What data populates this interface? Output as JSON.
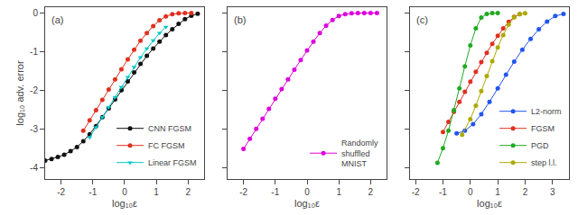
{
  "chart_data": [
    {
      "type": "line",
      "x_label": "log₁₀ε",
      "y_label": "log₁₀ adv. error",
      "annotations": [
        "(a)"
      ],
      "xlim": [
        -2.5,
        2.5
      ],
      "ylim": [
        -4.3,
        0.15
      ],
      "xticks": [
        -2,
        -1,
        0,
        1,
        2
      ],
      "yticks": [
        -4,
        -3,
        -2,
        -1,
        0
      ],
      "grid": false,
      "legend": "lower right",
      "series": [
        {
          "name": "CNN FGSM",
          "color": "#111111",
          "marker": "circle",
          "x": [
            -2.5,
            -2.3,
            -2.1,
            -1.9,
            -1.7,
            -1.5,
            -1.3,
            -1.1,
            -0.9,
            -0.7,
            -0.5,
            -0.3,
            -0.1,
            0.1,
            0.3,
            0.5,
            0.7,
            0.9,
            1.1,
            1.3,
            1.5,
            1.7,
            1.9,
            2.1,
            2.3
          ],
          "values": [
            -3.82,
            -3.78,
            -3.73,
            -3.67,
            -3.58,
            -3.47,
            -3.32,
            -3.14,
            -2.93,
            -2.7,
            -2.47,
            -2.24,
            -2.0,
            -1.77,
            -1.54,
            -1.32,
            -1.11,
            -0.92,
            -0.74,
            -0.57,
            -0.42,
            -0.28,
            -0.16,
            -0.07,
            -0.02
          ]
        },
        {
          "name": "FC FGSM",
          "color": "#e03020",
          "marker": "circle",
          "x": [
            -1.3,
            -1.1,
            -0.9,
            -0.7,
            -0.5,
            -0.3,
            -0.1,
            0.1,
            0.3,
            0.5,
            0.7,
            0.9,
            1.1,
            1.3,
            1.5,
            1.7,
            1.9,
            2.1
          ],
          "values": [
            -3.05,
            -2.78,
            -2.52,
            -2.25,
            -1.98,
            -1.72,
            -1.46,
            -1.2,
            -0.95,
            -0.72,
            -0.52,
            -0.34,
            -0.19,
            -0.09,
            -0.03,
            -0.008,
            -0.002,
            -0.0005
          ]
        },
        {
          "name": "Linear FGSM",
          "color": "#00c8c8",
          "marker": "triangle-down",
          "x": [
            -1.1,
            -0.9,
            -0.7,
            -0.5,
            -0.3,
            -0.1,
            0.1,
            0.3,
            0.5,
            0.7,
            0.9,
            1.1,
            1.3
          ],
          "values": [
            -3.22,
            -2.96,
            -2.7,
            -2.44,
            -2.18,
            -1.92,
            -1.66,
            -1.4,
            -1.15,
            -0.92,
            -0.71,
            -0.52,
            -0.36
          ]
        }
      ]
    },
    {
      "type": "line",
      "x_label": "log₁₀ε",
      "annotations": [
        "(b)"
      ],
      "xlim": [
        -2.5,
        2.5
      ],
      "ylim": [
        -4.3,
        0.15
      ],
      "xticks": [
        -2,
        -1,
        0,
        1,
        2
      ],
      "yticks": [
        -4,
        -3,
        -2,
        -1,
        0
      ],
      "tick_labels": "x",
      "grid": false,
      "legend": "lower right",
      "series": [
        {
          "name": "Randomly\nshuffled\nMNIST",
          "color": "#dd00dd",
          "marker": "circle",
          "x": [
            -2.0,
            -1.8,
            -1.6,
            -1.4,
            -1.2,
            -1.0,
            -0.8,
            -0.6,
            -0.4,
            -0.2,
            0.0,
            0.2,
            0.4,
            0.6,
            0.8,
            1.0,
            1.2,
            1.4,
            1.6,
            1.8,
            2.0,
            2.2
          ],
          "values": [
            -3.52,
            -3.26,
            -3.0,
            -2.74,
            -2.48,
            -2.22,
            -1.97,
            -1.72,
            -1.47,
            -1.22,
            -0.97,
            -0.74,
            -0.52,
            -0.33,
            -0.18,
            -0.08,
            -0.028,
            -0.008,
            -0.002,
            -0.0005,
            -0.0001,
            -3e-05
          ]
        }
      ]
    },
    {
      "type": "line",
      "x_label": "log₁₀ε",
      "annotations": [
        "(c)"
      ],
      "xlim": [
        -2.2,
        3.6
      ],
      "ylim": [
        -4.3,
        0.15
      ],
      "xticks": [
        -2,
        -1,
        0,
        1,
        2,
        3
      ],
      "yticks": [
        -4,
        -3,
        -2,
        -1,
        0
      ],
      "tick_labels": "x",
      "grid": false,
      "legend": "lower right",
      "series": [
        {
          "name": "L2-norm",
          "color": "#2255ee",
          "marker": "circle",
          "x": [
            -0.5,
            -0.2,
            0.1,
            0.4,
            0.7,
            1.0,
            1.3,
            1.6,
            1.9,
            2.2,
            2.5,
            2.8,
            3.1,
            3.4
          ],
          "values": [
            -3.12,
            -3.05,
            -2.88,
            -2.62,
            -2.3,
            -1.95,
            -1.6,
            -1.26,
            -0.95,
            -0.67,
            -0.42,
            -0.22,
            -0.08,
            -0.022
          ]
        },
        {
          "name": "FGSM",
          "color": "#e03020",
          "marker": "circle",
          "x": [
            -1.0,
            -0.8,
            -0.6,
            -0.4,
            -0.2,
            0.0,
            0.2,
            0.4,
            0.6,
            0.8,
            1.0,
            1.2,
            1.4,
            1.6,
            1.8
          ],
          "values": [
            -3.08,
            -2.82,
            -2.56,
            -2.3,
            -2.04,
            -1.78,
            -1.52,
            -1.27,
            -1.03,
            -0.8,
            -0.59,
            -0.4,
            -0.23,
            -0.1,
            -0.032
          ]
        },
        {
          "name": "PGD",
          "color": "#22aa22",
          "marker": "circle",
          "x": [
            -1.2,
            -1.0,
            -0.8,
            -0.6,
            -0.4,
            -0.2,
            0.0,
            0.2,
            0.4,
            0.6,
            0.8,
            1.0
          ],
          "values": [
            -3.88,
            -3.5,
            -3.05,
            -2.52,
            -1.95,
            -1.38,
            -0.84,
            -0.4,
            -0.12,
            -0.025,
            -0.004,
            -0.0005
          ]
        },
        {
          "name": "step l.l.",
          "color": "#aaaa00",
          "marker": "circle",
          "x": [
            -0.3,
            0.0,
            0.2,
            0.4,
            0.6,
            0.8,
            1.0,
            1.2,
            1.4,
            1.6,
            1.8,
            2.0
          ],
          "values": [
            -3.15,
            -2.75,
            -2.4,
            -2.02,
            -1.63,
            -1.25,
            -0.89,
            -0.57,
            -0.3,
            -0.11,
            -0.028,
            -0.005
          ]
        }
      ]
    }
  ]
}
